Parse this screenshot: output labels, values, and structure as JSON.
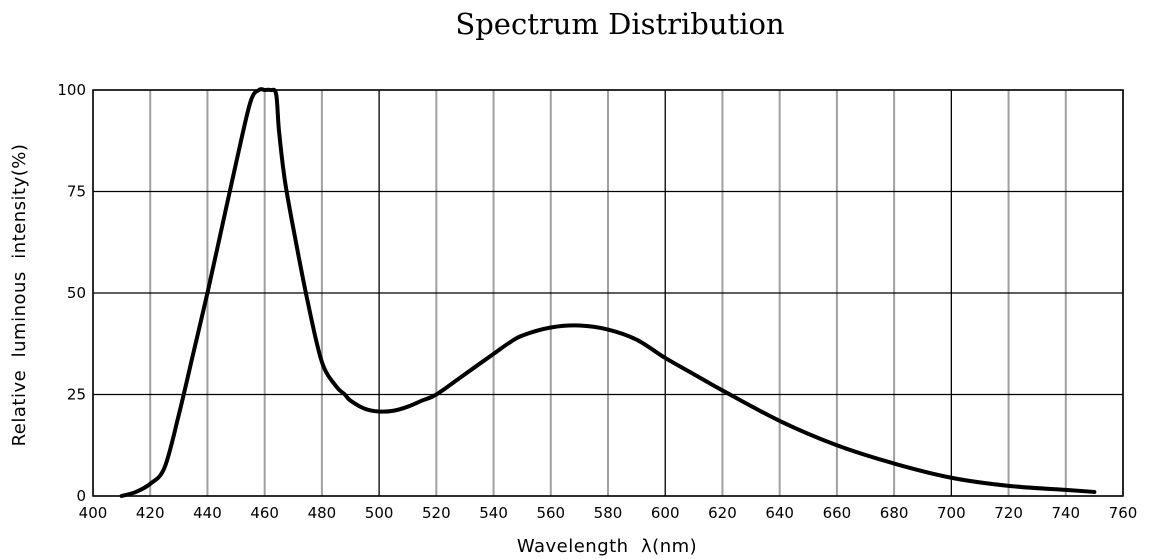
{
  "chart_data": {
    "type": "line",
    "title": "Spectrum Distribution",
    "xlabel": "Wavelength  λ(nm)",
    "ylabel": "Relative  luminous  intensity(%)",
    "xlim": [
      400,
      760
    ],
    "ylim": [
      0,
      100
    ],
    "x_ticks": [
      "400",
      "420",
      "440",
      "460",
      "480",
      "500",
      "520",
      "540",
      "560",
      "580",
      "600",
      "620",
      "640",
      "660",
      "680",
      "700",
      "720",
      "740",
      "760"
    ],
    "y_ticks": [
      "0",
      "25",
      "50",
      "75",
      "100"
    ],
    "grid": true,
    "line_color": "#000000",
    "series": [
      {
        "x": [
          410,
          415,
          420,
          425,
          430,
          435,
          440,
          445,
          450,
          455,
          458,
          460,
          462,
          464,
          465,
          467,
          470,
          475,
          480,
          485,
          488,
          490,
          495,
          500,
          505,
          510,
          515,
          520,
          530,
          540,
          545,
          550,
          560,
          570,
          580,
          590,
          600,
          610,
          620,
          640,
          660,
          680,
          700,
          720,
          740,
          750
        ],
        "y": [
          0,
          1,
          3,
          7,
          20,
          35,
          50,
          66,
          82,
          97,
          100,
          100,
          100,
          99,
          90,
          78,
          66,
          48,
          33,
          27,
          25,
          23.5,
          21.5,
          20.8,
          21,
          22,
          23.5,
          25,
          30,
          35,
          37.5,
          39.5,
          41.5,
          42,
          41,
          38.5,
          34,
          30,
          26,
          18.5,
          12.5,
          8,
          4.5,
          2.5,
          1.5,
          1
        ]
      }
    ]
  }
}
